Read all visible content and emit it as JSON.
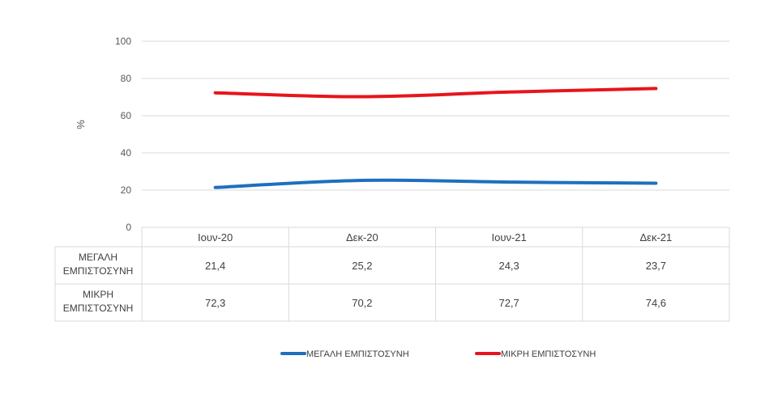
{
  "chart_data": {
    "type": "line",
    "ylabel": "%",
    "ylim": [
      0,
      100
    ],
    "yticks": [
      0,
      20,
      40,
      60,
      80,
      100
    ],
    "categories": [
      "Ιουν-20",
      "Δεκ-20",
      "Ιουν-21",
      "Δεκ-21"
    ],
    "grid": true,
    "legend_position": "bottom",
    "series": [
      {
        "name": "ΜΕΓΑΛΗ ΕΜΠΙΣΤΟΣΥΝΗ",
        "row_label": [
          "ΜΕΓΑΛΗ",
          "ΕΜΠΙΣΤΟΣΥΝΗ"
        ],
        "values": [
          21.4,
          25.2,
          24.3,
          23.7
        ],
        "labels": [
          "21,4",
          "25,2",
          "24,3",
          "23,7"
        ],
        "color": "#1f6fbf"
      },
      {
        "name": "ΜΙΚΡΗ ΕΜΠΙΣΤΟΣΥΝΗ",
        "row_label": [
          "ΜΙΚΡΗ",
          "ΕΜΠΙΣΤΟΣΥΝΗ"
        ],
        "values": [
          72.3,
          70.2,
          72.7,
          74.6
        ],
        "labels": [
          "72,3",
          "70,2",
          "72,7",
          "74,6"
        ],
        "color": "#e8141c"
      }
    ]
  }
}
